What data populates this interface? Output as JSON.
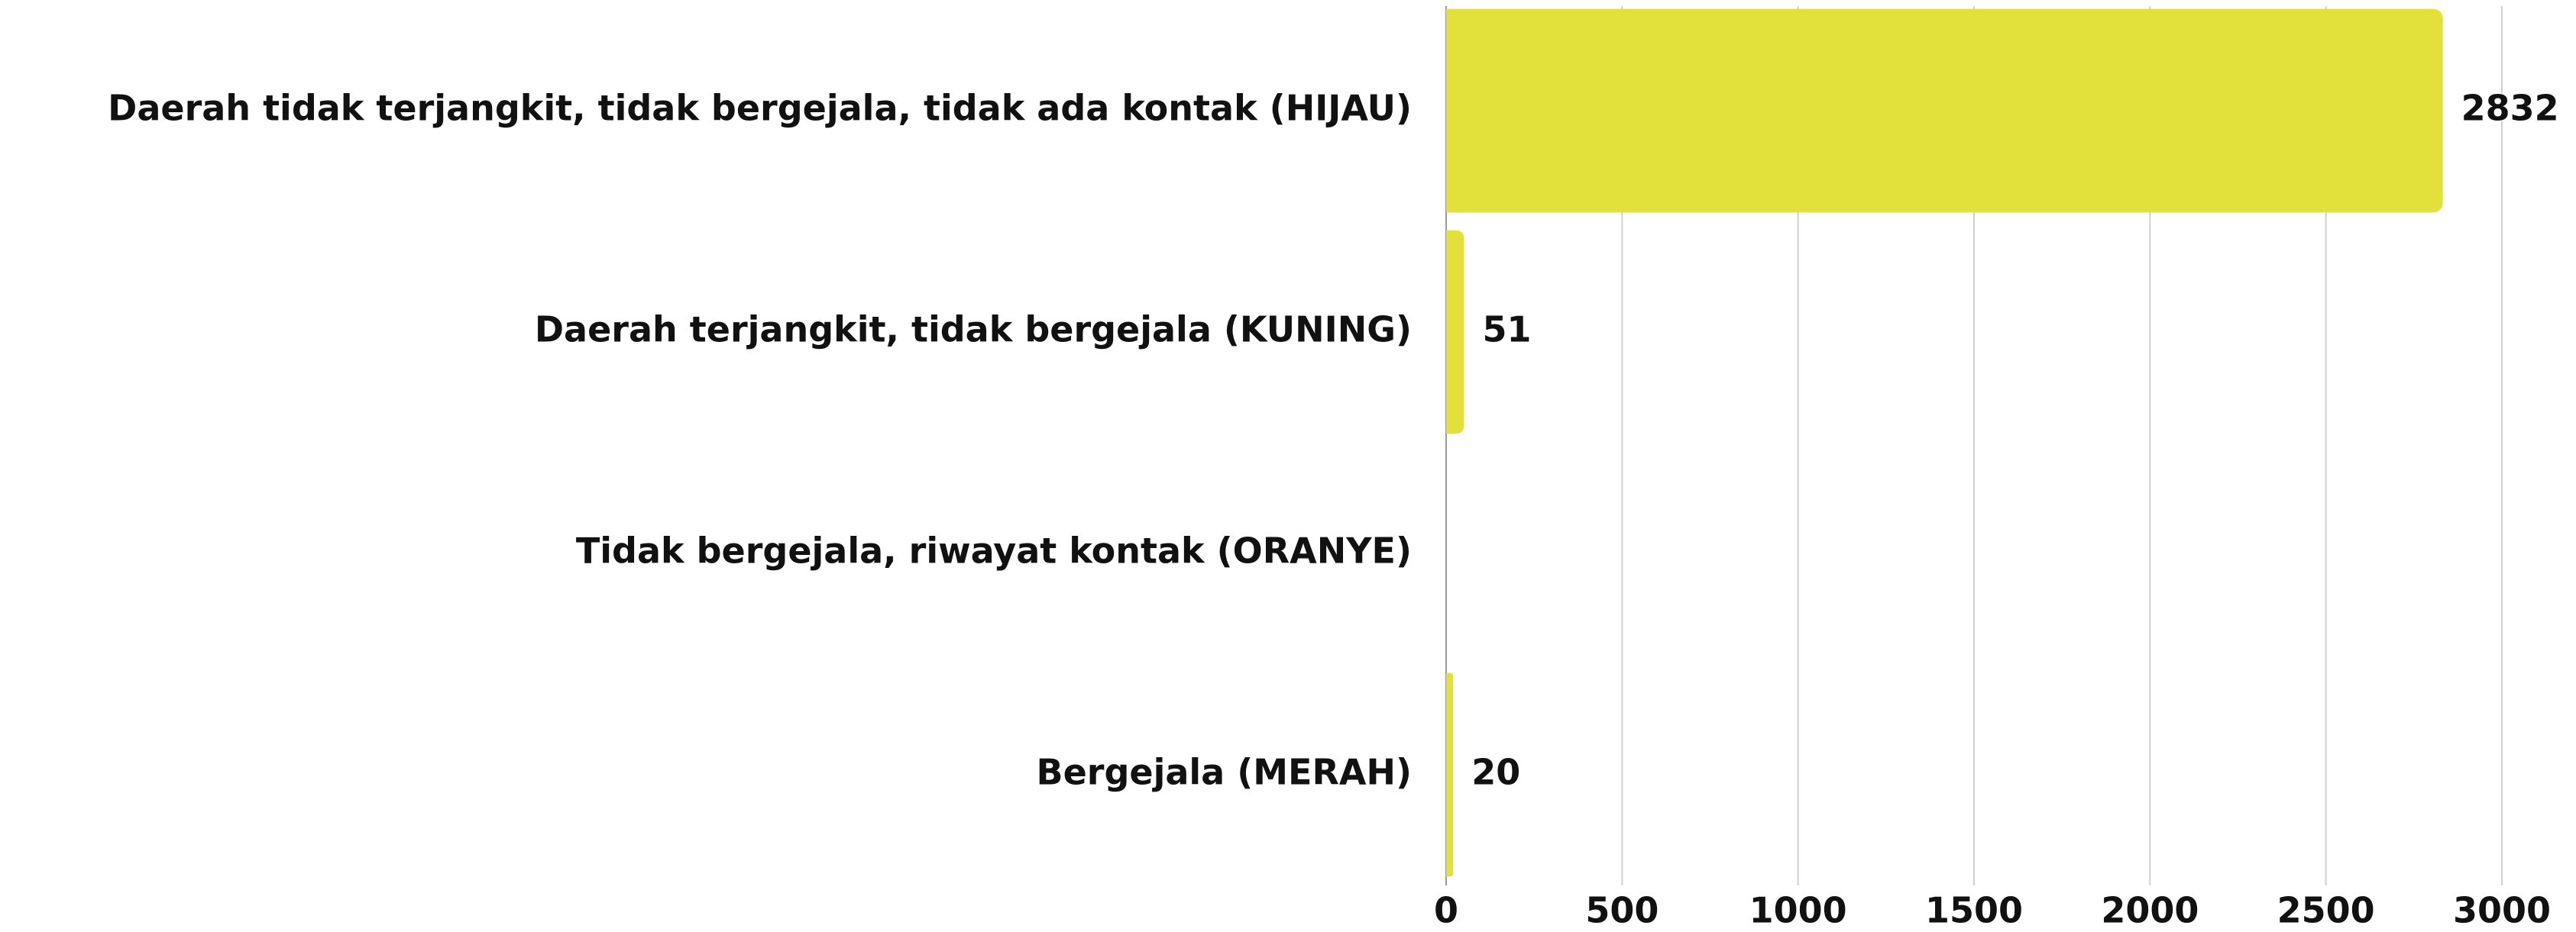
{
  "chart_data": {
    "type": "bar",
    "orientation": "horizontal",
    "categories": [
      "Daerah tidak terjangkit, tidak bergejala, tidak ada kontak (HIJAU)",
      "Daerah terjangkit, tidak bergejala (KUNING)",
      "Tidak bergejala, riwayat kontak (ORANYE)",
      "Bergejala (MERAH)"
    ],
    "values": [
      2832,
      51,
      null,
      20
    ],
    "color": "#e2e03a",
    "xlim": [
      0,
      3000
    ],
    "xticks": [
      0,
      500,
      1000,
      1500,
      2000,
      2500,
      3000
    ],
    "grid": true
  }
}
